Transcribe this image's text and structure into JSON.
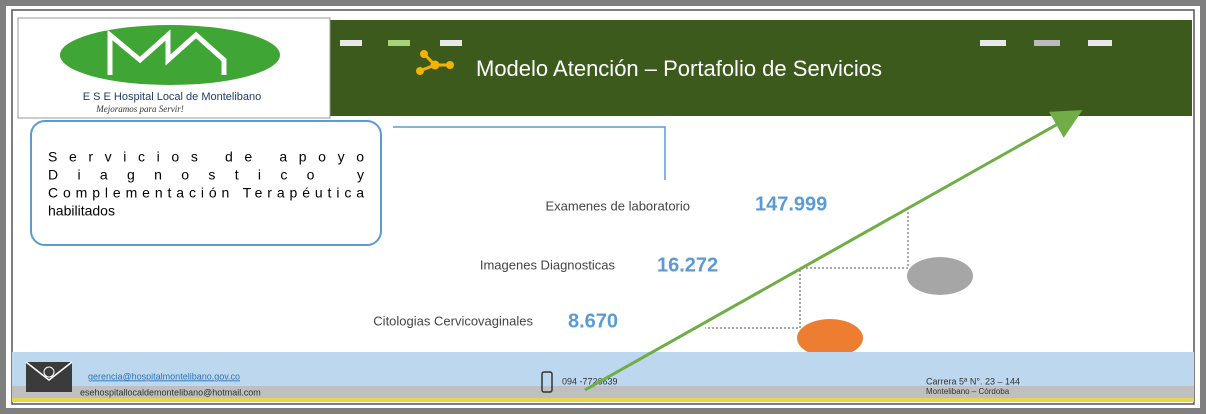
{
  "logo": {
    "name": "E S E Hospital Local de Montelibano",
    "slogan": "Mejoramos para Servir!"
  },
  "header": {
    "title": "Modelo Atención – Portafolio de Servicios"
  },
  "box": {
    "lines": [
      "Servicios de apoyo",
      "Diagnostico y",
      "Complementación Terapéutica",
      "habilitados"
    ]
  },
  "items": [
    {
      "label": "Examenes de laboratorio",
      "value": "147.999"
    },
    {
      "label": "Imagenes Diagnosticas",
      "value": "16.272"
    },
    {
      "label": "Citologias Cervicovaginales",
      "value": "8.670"
    }
  ],
  "footer": {
    "email1": "gerencia@hospitalmontelibano.gov.co",
    "email2": "esehospitallocaldemontelibano@hotmail.com",
    "phone": "094 -7726639",
    "address": "Carrera 5ª N°. 23 – 144",
    "city": "Montelibano – Córdoba"
  }
}
